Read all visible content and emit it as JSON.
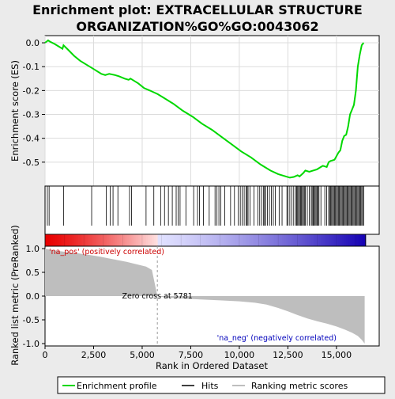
{
  "title_line1": "Enrichment plot: EXTRACELLULAR STRUCTURE",
  "title_line2": "ORGANIZATION%GO%GO:0043062",
  "es_ylabel": "Enrichment score (ES)",
  "rank_ylabel": "Ranked list metric (PreRanked)",
  "xlabel": "Rank in Ordered Dataset",
  "zero_cross_label": "Zero cross at 5781",
  "pos_label": "'na_pos' (positively correlated)",
  "neg_label": "'na_neg' (negatively correlated)",
  "legend": {
    "enrichment": "Enrichment profile",
    "hits": "Hits",
    "ranking": "Ranking metric scores"
  },
  "colors": {
    "profile": "#00d800",
    "hits": "#000000",
    "metric_fill": "#bebebe",
    "pos_label": "#cc0000",
    "neg_label": "#0000bb",
    "heat_pos": "#e80000",
    "heat_neg": "#1400b4"
  },
  "chart_data": {
    "type": "line",
    "x_range": [
      0,
      17200
    ],
    "zero_cross": 5781,
    "n_genes": 16500,
    "x_ticks": [
      0,
      2500,
      5000,
      7500,
      10000,
      12500,
      15000
    ],
    "x_tick_labels": [
      "0",
      "2,500",
      "5,000",
      "7,500",
      "10,000",
      "12,500",
      "15,000"
    ],
    "es_ylim": [
      -0.6,
      0.03
    ],
    "es_ticks": [
      0.0,
      -0.1,
      -0.2,
      -0.3,
      -0.4,
      -0.5
    ],
    "es_tick_labels": [
      "0.0",
      "-0.1",
      "-0.2",
      "-0.3",
      "-0.4",
      "-0.5"
    ],
    "rank_ylim": [
      -1.05,
      1.05
    ],
    "rank_ticks": [
      1.0,
      0.5,
      0.0,
      -0.5,
      -1.0
    ],
    "rank_tick_labels": [
      "1.0",
      "0.5",
      "0.0",
      "-0.5",
      "-1.0"
    ],
    "enrichment_profile": {
      "x": [
        0,
        80,
        160,
        250,
        500,
        700,
        900,
        950,
        1200,
        1500,
        1800,
        2100,
        2300,
        2600,
        2900,
        3100,
        3300,
        3600,
        3800,
        4100,
        4300,
        4400,
        4500,
        4800,
        5100,
        5400,
        5800,
        6100,
        6600,
        7100,
        7600,
        8100,
        8600,
        9100,
        9600,
        10100,
        10600,
        11100,
        11600,
        12000,
        12400,
        12600,
        12800,
        13000,
        13100,
        13300,
        13400,
        13600,
        13800,
        14000,
        14100,
        14200,
        14300,
        14500,
        14600,
        14700,
        14900,
        15000,
        15100,
        15200,
        15300,
        15400,
        15500,
        15600,
        15700,
        15800,
        15900,
        16000,
        16050,
        16100,
        16200,
        16300,
        16400
      ],
      "y": [
        0.0,
        0.005,
        0.01,
        0.005,
        -0.005,
        -0.015,
        -0.025,
        -0.01,
        -0.03,
        -0.055,
        -0.075,
        -0.09,
        -0.1,
        -0.115,
        -0.13,
        -0.135,
        -0.13,
        -0.135,
        -0.14,
        -0.15,
        -0.155,
        -0.15,
        -0.155,
        -0.17,
        -0.19,
        -0.2,
        -0.215,
        -0.23,
        -0.255,
        -0.285,
        -0.31,
        -0.34,
        -0.365,
        -0.395,
        -0.425,
        -0.455,
        -0.48,
        -0.51,
        -0.535,
        -0.55,
        -0.56,
        -0.565,
        -0.562,
        -0.555,
        -0.56,
        -0.545,
        -0.535,
        -0.54,
        -0.535,
        -0.53,
        -0.525,
        -0.52,
        -0.515,
        -0.52,
        -0.5,
        -0.495,
        -0.49,
        -0.475,
        -0.46,
        -0.45,
        -0.41,
        -0.39,
        -0.385,
        -0.35,
        -0.3,
        -0.28,
        -0.26,
        -0.2,
        -0.15,
        -0.1,
        -0.05,
        -0.01,
        0.0
      ]
    },
    "ranked_metric": {
      "x": [
        0,
        300,
        700,
        1200,
        1700,
        2200,
        2700,
        3200,
        3700,
        4200,
        4700,
        5200,
        5500,
        5781,
        6200,
        7000,
        8000,
        9000,
        10000,
        10800,
        11400,
        12000,
        12500,
        13000,
        13500,
        14000,
        14500,
        15000,
        15400,
        15800,
        16100,
        16300,
        16450
      ],
      "y": [
        1.0,
        0.97,
        0.95,
        0.92,
        0.9,
        0.87,
        0.84,
        0.8,
        0.76,
        0.72,
        0.67,
        0.62,
        0.55,
        0.0,
        -0.03,
        -0.05,
        -0.07,
        -0.09,
        -0.11,
        -0.14,
        -0.18,
        -0.25,
        -0.32,
        -0.4,
        -0.47,
        -0.53,
        -0.58,
        -0.64,
        -0.7,
        -0.77,
        -0.84,
        -0.92,
        -1.0
      ]
    },
    "hit_positions": [
      120,
      210,
      950,
      2400,
      3150,
      3350,
      3500,
      3750,
      4350,
      4450,
      5200,
      5600,
      5950,
      6150,
      6350,
      6550,
      6750,
      6850,
      6950,
      7250,
      7650,
      7850,
      7950,
      8150,
      8450,
      8750,
      8850,
      8950,
      9050,
      9250,
      9550,
      9750,
      9950,
      10050,
      10150,
      10250,
      10350,
      10400,
      10450,
      10550,
      10750,
      10950,
      11050,
      11150,
      11250,
      11300,
      11350,
      11450,
      11550,
      11650,
      11750,
      11850,
      12050,
      12200,
      12450,
      12500,
      12600,
      12700,
      12800,
      12900,
      12950,
      13000,
      13050,
      13100,
      13150,
      13200,
      13250,
      13300,
      13350,
      13400,
      13500,
      13600,
      13700,
      13750,
      13800,
      13850,
      13900,
      13950,
      14000,
      14050,
      14100,
      14200,
      14400,
      14500,
      14600,
      14650,
      14700,
      14750,
      14800,
      14850,
      14900,
      14950,
      15000,
      15050,
      15100,
      15150,
      15200,
      15250,
      15300,
      15350,
      15400,
      15450,
      15500,
      15550,
      15600,
      15650,
      15700,
      15750,
      15800,
      15850,
      15900,
      15950,
      16000,
      16050,
      16100,
      16150,
      16200,
      16250,
      16300,
      16350,
      16400
    ]
  }
}
